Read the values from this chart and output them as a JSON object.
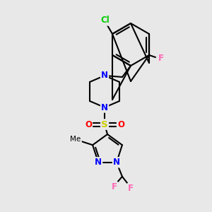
{
  "bg_color": "#e8e8e8",
  "bond_color": "#000000",
  "bond_width": 1.5,
  "atom_colors": {
    "N": "#0000ff",
    "O": "#ff0000",
    "S": "#cccc00",
    "Cl": "#00cc00",
    "F": "#ff69b4",
    "C": "#000000"
  },
  "figsize": [
    3.0,
    3.0
  ],
  "dpi": 100
}
